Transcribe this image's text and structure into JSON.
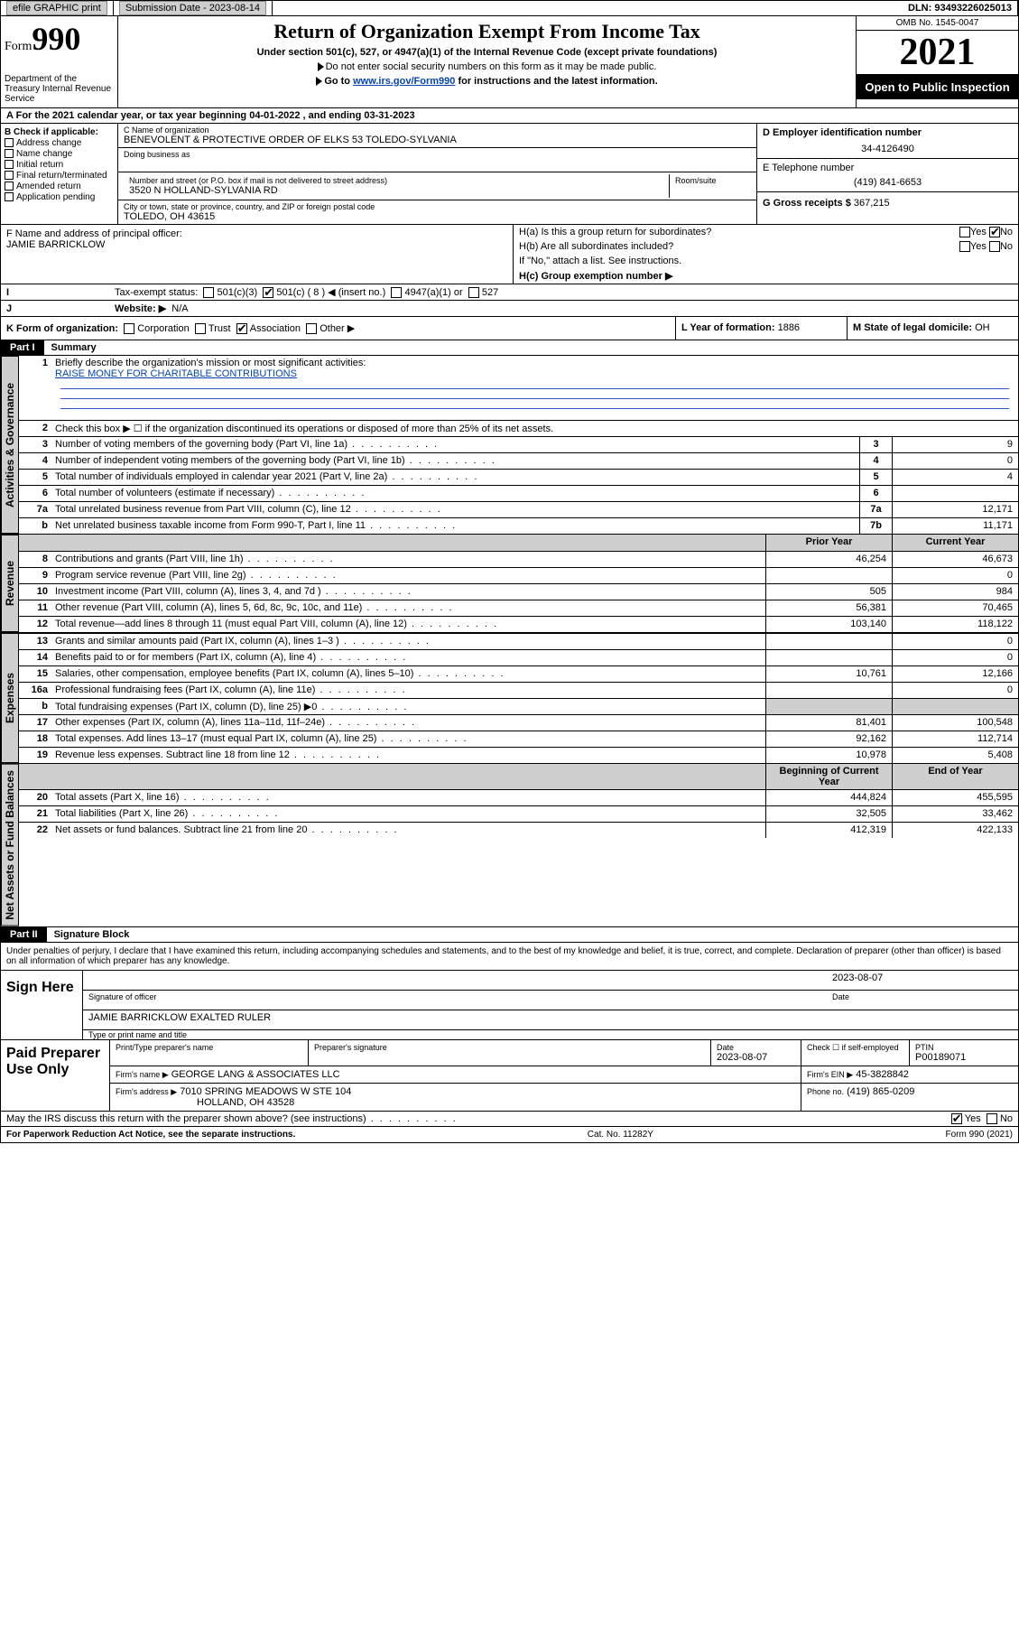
{
  "colors": {
    "text": "#000000",
    "bg": "#ffffff",
    "shade": "#cfcfcf",
    "link": "#0645ad",
    "line_blue": "#3355cc",
    "inverse_bg": "#000000",
    "inverse_fg": "#ffffff"
  },
  "topbar": {
    "efile": "efile GRAPHIC print",
    "submission_label": "Submission Date - 2023-08-14",
    "dln": "DLN: 93493226025013"
  },
  "header": {
    "form_word": "Form",
    "form_num": "990",
    "dept": "Department of the Treasury\nInternal Revenue Service",
    "title": "Return of Organization Exempt From Income Tax",
    "subtitle": "Under section 501(c), 527, or 4947(a)(1) of the Internal Revenue Code (except private foundations)",
    "note1": "Do not enter social security numbers on this form as it may be made public.",
    "note2_pre": "Go to ",
    "note2_link": "www.irs.gov/Form990",
    "note2_post": " for instructions and the latest information.",
    "omb": "OMB No. 1545-0047",
    "year": "2021",
    "open": "Open to Public Inspection"
  },
  "periodA": {
    "text_pre": "For the 2021 calendar year, or tax year beginning ",
    "begin": "04-01-2022",
    "mid": " , and ending ",
    "end": "03-31-2023"
  },
  "boxB": {
    "label": "B Check if applicable:",
    "opts": [
      "Address change",
      "Name change",
      "Initial return",
      "Final return/terminated",
      "Amended return",
      "Application pending"
    ]
  },
  "boxC": {
    "name_label": "C Name of organization",
    "name": "BENEVOLENT & PROTECTIVE ORDER OF ELKS 53 TOLEDO-SYLVANIA",
    "dba_label": "Doing business as",
    "street_label": "Number and street (or P.O. box if mail is not delivered to street address)",
    "room_label": "Room/suite",
    "street": "3520 N HOLLAND-SYLVANIA RD",
    "city_label": "City or town, state or province, country, and ZIP or foreign postal code",
    "city": "TOLEDO, OH  43615"
  },
  "boxD": {
    "label": "D Employer identification number",
    "value": "34-4126490"
  },
  "boxE": {
    "label": "E Telephone number",
    "value": "(419) 841-6653"
  },
  "boxG": {
    "label": "G Gross receipts $",
    "value": "367,215"
  },
  "boxF": {
    "label": "F Name and address of principal officer:",
    "name": "JAMIE BARRICKLOW"
  },
  "boxH": {
    "a_label": "H(a)  Is this a group return for subordinates?",
    "a_yes": "Yes",
    "a_no": "No",
    "a_checked": "No",
    "b_label": "H(b)  Are all subordinates included?",
    "b_yes": "Yes",
    "b_no": "No",
    "b_note": "If \"No,\" attach a list. See instructions.",
    "c_label": "H(c)  Group exemption number ▶"
  },
  "boxI": {
    "label": "Tax-exempt status:",
    "o1": "501(c)(3)",
    "o2": "501(c) ( 8 ) ◀ (insert no.)",
    "o2_checked": true,
    "o3": "4947(a)(1) or",
    "o4": "527"
  },
  "boxJ": {
    "label": "Website: ▶",
    "value": "N/A"
  },
  "boxK": {
    "label": "K Form of organization:",
    "opts": [
      "Corporation",
      "Trust",
      "Association",
      "Other ▶"
    ],
    "checked": "Association"
  },
  "boxL": {
    "label": "L Year of formation:",
    "value": "1886"
  },
  "boxM": {
    "label": "M State of legal domicile:",
    "value": "OH"
  },
  "part1": {
    "hdr": "Part I",
    "title": "Summary",
    "l1_label": "Briefly describe the organization's mission or most significant activities:",
    "l1_value": "RAISE MONEY FOR CHARITABLE CONTRIBUTIONS",
    "l2": "Check this box ▶ ☐  if the organization discontinued its operations or disposed of more than 25% of its net assets.",
    "rows_gov": [
      {
        "n": "3",
        "t": "Number of voting members of the governing body (Part VI, line 1a)",
        "k": "3",
        "v": "9"
      },
      {
        "n": "4",
        "t": "Number of independent voting members of the governing body (Part VI, line 1b)",
        "k": "4",
        "v": "0"
      },
      {
        "n": "5",
        "t": "Total number of individuals employed in calendar year 2021 (Part V, line 2a)",
        "k": "5",
        "v": "4"
      },
      {
        "n": "6",
        "t": "Total number of volunteers (estimate if necessary)",
        "k": "6",
        "v": ""
      },
      {
        "n": "7a",
        "t": "Total unrelated business revenue from Part VIII, column (C), line 12",
        "k": "7a",
        "v": "12,171"
      },
      {
        "n": "b",
        "t": "Net unrelated business taxable income from Form 990-T, Part I, line 11",
        "k": "7b",
        "v": "11,171"
      }
    ],
    "col_py": "Prior Year",
    "col_cy": "Current Year",
    "rows_rev": [
      {
        "n": "8",
        "t": "Contributions and grants (Part VIII, line 1h)",
        "py": "46,254",
        "cy": "46,673"
      },
      {
        "n": "9",
        "t": "Program service revenue (Part VIII, line 2g)",
        "py": "",
        "cy": "0"
      },
      {
        "n": "10",
        "t": "Investment income (Part VIII, column (A), lines 3, 4, and 7d )",
        "py": "505",
        "cy": "984"
      },
      {
        "n": "11",
        "t": "Other revenue (Part VIII, column (A), lines 5, 6d, 8c, 9c, 10c, and 11e)",
        "py": "56,381",
        "cy": "70,465"
      },
      {
        "n": "12",
        "t": "Total revenue—add lines 8 through 11 (must equal Part VIII, column (A), line 12)",
        "py": "103,140",
        "cy": "118,122"
      }
    ],
    "rows_exp": [
      {
        "n": "13",
        "t": "Grants and similar amounts paid (Part IX, column (A), lines 1–3 )",
        "py": "",
        "cy": "0"
      },
      {
        "n": "14",
        "t": "Benefits paid to or for members (Part IX, column (A), line 4)",
        "py": "",
        "cy": "0"
      },
      {
        "n": "15",
        "t": "Salaries, other compensation, employee benefits (Part IX, column (A), lines 5–10)",
        "py": "10,761",
        "cy": "12,166"
      },
      {
        "n": "16a",
        "t": "Professional fundraising fees (Part IX, column (A), line 11e)",
        "py": "",
        "cy": "0"
      },
      {
        "n": "b",
        "t": "Total fundraising expenses (Part IX, column (D), line 25) ▶0",
        "py": "__shade__",
        "cy": "__shade__"
      },
      {
        "n": "17",
        "t": "Other expenses (Part IX, column (A), lines 11a–11d, 11f–24e)",
        "py": "81,401",
        "cy": "100,548"
      },
      {
        "n": "18",
        "t": "Total expenses. Add lines 13–17 (must equal Part IX, column (A), line 25)",
        "py": "92,162",
        "cy": "112,714"
      },
      {
        "n": "19",
        "t": "Revenue less expenses. Subtract line 18 from line 12",
        "py": "10,978",
        "cy": "5,408"
      }
    ],
    "col_beg": "Beginning of Current Year",
    "col_end": "End of Year",
    "rows_net": [
      {
        "n": "20",
        "t": "Total assets (Part X, line 16)",
        "py": "444,824",
        "cy": "455,595"
      },
      {
        "n": "21",
        "t": "Total liabilities (Part X, line 26)",
        "py": "32,505",
        "cy": "33,462"
      },
      {
        "n": "22",
        "t": "Net assets or fund balances. Subtract line 21 from line 20",
        "py": "412,319",
        "cy": "422,133"
      }
    ]
  },
  "vtabs": {
    "gov": "Activities & Governance",
    "rev": "Revenue",
    "exp": "Expenses",
    "net": "Net Assets or Fund Balances"
  },
  "part2": {
    "hdr": "Part II",
    "title": "Signature Block",
    "decl": "Under penalties of perjury, I declare that I have examined this return, including accompanying schedules and statements, and to the best of my knowledge and belief, it is true, correct, and complete. Declaration of preparer (other than officer) is based on all information of which preparer has any knowledge.",
    "sign_here": "Sign Here",
    "sig_officer": "Signature of officer",
    "sig_date": "2023-08-07",
    "date_label": "Date",
    "officer_name": "JAMIE BARRICKLOW EXALTED RULER",
    "type_label": "Type or print name and title",
    "paid": "Paid Preparer Use Only",
    "p_name_label": "Print/Type preparer's name",
    "p_sig_label": "Preparer's signature",
    "p_date_label": "Date",
    "p_date": "2023-08-07",
    "p_check_label": "Check ☐ if self-employed",
    "ptin_label": "PTIN",
    "ptin": "P00189071",
    "firm_name_label": "Firm's name    ▶",
    "firm_name": "GEORGE LANG & ASSOCIATES LLC",
    "firm_ein_label": "Firm's EIN ▶",
    "firm_ein": "45-3828842",
    "firm_addr_label": "Firm's address ▶",
    "firm_addr1": "7010 SPRING MEADOWS W STE 104",
    "firm_addr2": "HOLLAND, OH  43528",
    "firm_phone_label": "Phone no.",
    "firm_phone": "(419) 865-0209",
    "may_irs": "May the IRS discuss this return with the preparer shown above? (see instructions)",
    "may_yes": "Yes",
    "may_no": "No",
    "may_checked": "Yes"
  },
  "footer": {
    "left": "For Paperwork Reduction Act Notice, see the separate instructions.",
    "mid": "Cat. No. 11282Y",
    "right": "Form 990 (2021)"
  }
}
